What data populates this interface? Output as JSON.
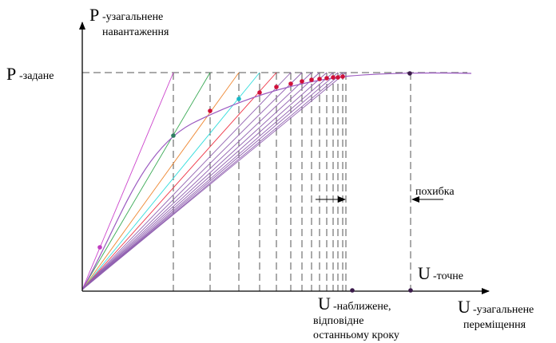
{
  "labels": {
    "y_axis_letter": "P",
    "y_axis_text_1": "-узагальнене",
    "y_axis_text_2": "навантаження",
    "p_target_letter": "P",
    "p_target_text": "-задане",
    "x_axis_letter": "U",
    "x_axis_text_1": "-узагальнене",
    "x_axis_text_2": "переміщення",
    "u_exact_letter": "U",
    "u_exact_text": "-точне",
    "u_approx_letter": "U",
    "u_approx_text_1": "-наближене,",
    "u_approx_text_2": "відповідне",
    "u_approx_text_3": "останньому кроку",
    "error_label": "похибка"
  },
  "colors": {
    "axis": "#000000",
    "curve": "#9b59c0",
    "dashed": "#555555",
    "point_main": "#d0103a",
    "point_first": "#c03cc0",
    "point_second": "#2e7d62",
    "point_cyan": "#18b8c8",
    "point_end": "#3a1a4a",
    "step_lines": [
      "#cc44cc",
      "#3aaa55",
      "#ee8833",
      "#33dddd",
      "#ee3344",
      "#9060b0",
      "#9060b0",
      "#9060b0",
      "#9060b0",
      "#9060b0",
      "#9060b0",
      "#9060b0",
      "#9060b0",
      "#9060b0"
    ]
  }
}
